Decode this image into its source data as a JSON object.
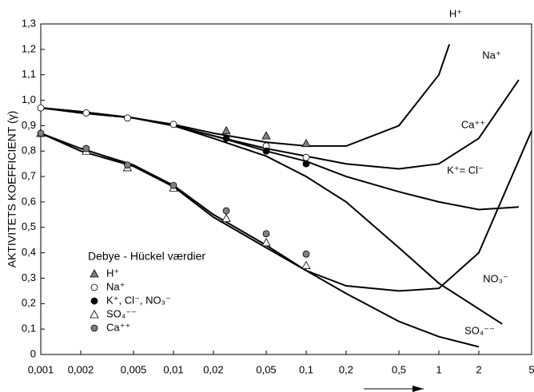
{
  "chart_data": {
    "type": "line",
    "ylabel": "AKTIVITETS KOEFFICIENT (γ)",
    "xscale": "log",
    "xlim": [
      0.001,
      5
    ],
    "ylim": [
      0,
      1.3
    ],
    "xticks": [
      {
        "value": 0.001,
        "label": "0,001"
      },
      {
        "value": 0.002,
        "label": "0,002"
      },
      {
        "value": 0.005,
        "label": "0,005"
      },
      {
        "value": 0.01,
        "label": "0,01"
      },
      {
        "value": 0.02,
        "label": "0,02"
      },
      {
        "value": 0.05,
        "label": "0,05"
      },
      {
        "value": 0.1,
        "label": "0,1"
      },
      {
        "value": 0.2,
        "label": "0,2"
      },
      {
        "value": 0.5,
        "label": "0,5"
      },
      1,
      2,
      5
    ],
    "yticks": [
      0,
      {
        "value": 0.1,
        "label": "0,1"
      },
      {
        "value": 0.2,
        "label": "0,2"
      },
      {
        "value": 0.3,
        "label": "0,3"
      },
      {
        "value": 0.4,
        "label": "0,4"
      },
      {
        "value": 0.5,
        "label": "0,5"
      },
      {
        "value": 0.6,
        "label": "0,6"
      },
      {
        "value": 0.7,
        "label": "0,7"
      },
      {
        "value": 0.8,
        "label": "0,8"
      },
      {
        "value": 0.9,
        "label": "0,9"
      },
      {
        "value": 1.0,
        "label": "1,0"
      },
      {
        "value": 1.1,
        "label": "1,1"
      },
      {
        "value": 1.2,
        "label": "1,2"
      },
      {
        "value": 1.3,
        "label": "1,3"
      }
    ],
    "series": [
      {
        "name": "H⁺",
        "color": "#000000",
        "x": [
          0.001,
          0.002,
          0.005,
          0.01,
          0.02,
          0.05,
          0.1,
          0.2,
          0.5,
          1,
          1.2
        ],
        "values": [
          0.97,
          0.955,
          0.93,
          0.905,
          0.87,
          0.835,
          0.82,
          0.82,
          0.9,
          1.1,
          1.22
        ]
      },
      {
        "name": "Na⁺",
        "color": "#000000",
        "x": [
          0.001,
          0.002,
          0.005,
          0.01,
          0.02,
          0.05,
          0.1,
          0.2,
          0.5,
          1,
          2,
          4
        ],
        "values": [
          0.97,
          0.955,
          0.93,
          0.9,
          0.86,
          0.81,
          0.78,
          0.75,
          0.73,
          0.75,
          0.85,
          1.08
        ]
      },
      {
        "name": "Ca⁺⁺",
        "color": "#000000",
        "x": [
          0.001,
          0.002,
          0.005,
          0.01,
          0.02,
          0.05,
          0.1,
          0.2,
          0.5,
          1,
          2,
          5
        ],
        "values": [
          0.87,
          0.81,
          0.745,
          0.665,
          0.55,
          0.43,
          0.33,
          0.27,
          0.25,
          0.26,
          0.4,
          0.88
        ]
      },
      {
        "name": "K⁺= Cl⁻",
        "color": "#000000",
        "x": [
          0.001,
          0.002,
          0.005,
          0.01,
          0.02,
          0.05,
          0.1,
          0.2,
          0.5,
          1,
          2,
          4
        ],
        "values": [
          0.97,
          0.955,
          0.93,
          0.9,
          0.86,
          0.8,
          0.76,
          0.7,
          0.64,
          0.6,
          0.57,
          0.58
        ]
      },
      {
        "name": "NO₃⁻",
        "color": "#000000",
        "x": [
          0.001,
          0.002,
          0.005,
          0.01,
          0.02,
          0.05,
          0.1,
          0.2,
          0.5,
          1,
          3
        ],
        "values": [
          0.97,
          0.95,
          0.93,
          0.9,
          0.85,
          0.78,
          0.7,
          0.6,
          0.42,
          0.28,
          0.12
        ]
      },
      {
        "name": "SO₄⁻⁻",
        "color": "#000000",
        "x": [
          0.001,
          0.002,
          0.005,
          0.01,
          0.02,
          0.05,
          0.1,
          0.2,
          0.5,
          1,
          2
        ],
        "values": [
          0.87,
          0.8,
          0.74,
          0.66,
          0.54,
          0.42,
          0.33,
          0.24,
          0.13,
          0.07,
          0.03
        ]
      }
    ],
    "legend_title": "Debye - Hückel værdier",
    "points": [
      {
        "name": "H⁺",
        "marker": "triangle",
        "color": "#808080",
        "x": [
          0.001,
          0.025,
          0.05,
          0.1
        ],
        "values": [
          0.87,
          0.88,
          0.86,
          0.83
        ]
      },
      {
        "name": "Na⁺",
        "marker": "circle",
        "color": "#ffffff",
        "x": [
          0.001,
          0.0022,
          0.0045,
          0.01,
          0.05,
          0.1
        ],
        "values": [
          0.97,
          0.95,
          0.93,
          0.905,
          0.82,
          0.775
        ]
      },
      {
        "name": "K⁺, Cl⁻, NO₃⁻",
        "marker": "circle",
        "color": "#000000",
        "x": [
          0.025,
          0.05,
          0.1
        ],
        "values": [
          0.85,
          0.8,
          0.75
        ]
      },
      {
        "name": "SO₄⁻⁻",
        "marker": "triangle",
        "color": "#ffffff",
        "x": [
          0.001,
          0.0022,
          0.0045,
          0.01,
          0.025,
          0.05,
          0.1
        ],
        "values": [
          0.87,
          0.8,
          0.735,
          0.655,
          0.535,
          0.44,
          0.35
        ]
      },
      {
        "name": "Ca⁺⁺",
        "marker": "circle",
        "color": "#808080",
        "x": [
          0.001,
          0.0022,
          0.0045,
          0.01,
          0.025,
          0.05,
          0.1
        ],
        "values": [
          0.87,
          0.81,
          0.745,
          0.665,
          0.565,
          0.475,
          0.395
        ]
      }
    ]
  }
}
